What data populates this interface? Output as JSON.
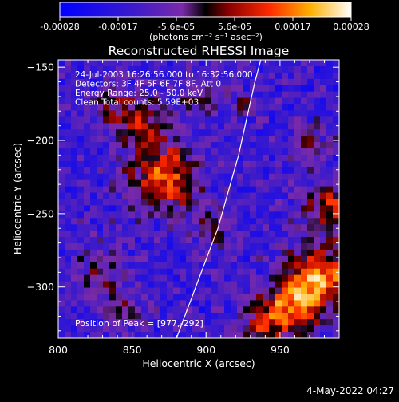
{
  "colorbar": {
    "tick_labels": [
      "-0.00028",
      "-0.00017",
      "-5.6e-05",
      "5.6e-05",
      "0.00017",
      "0.00028"
    ],
    "unit_label": "(photons cm⁻² s⁻¹ asec⁻²)"
  },
  "chart_data": {
    "type": "heatmap",
    "title": "Reconstructed RHESSI Image",
    "xlabel": "Heliocentric X (arcsec)",
    "ylabel": "Heliocentric Y (arcsec)",
    "xlim": [
      800,
      990
    ],
    "ylim": [
      -335,
      -145
    ],
    "x_ticks": [
      800,
      850,
      900,
      950
    ],
    "y_ticks": [
      -300,
      -250,
      -200,
      -150
    ],
    "x_tick_labels": [
      "800",
      "850",
      "900",
      "950"
    ],
    "y_tick_labels": [
      "−300",
      "−250",
      "−200",
      "−150"
    ],
    "value_range": [
      -0.00028,
      0.00028
    ],
    "annotations": [
      "24-Jul-2003 16:26:56.000 to 16:32:56.000",
      "Detectors: 3F 4F 5F 6F 7F 8F, Att 0",
      "Energy Range: 25.0 - 50.0 keV",
      "Clean     Total counts: 5.59E+03"
    ],
    "peak_label": "Position of Peak = [977,-292]",
    "peak": [
      977,
      -292
    ],
    "limb_line": [
      [
        880,
        -335
      ],
      [
        893,
        -300
      ],
      [
        908,
        -260
      ],
      [
        922,
        -210
      ],
      [
        933,
        -160
      ],
      [
        937,
        -145
      ]
    ],
    "sources": [
      {
        "x": 872,
        "y": -225,
        "sigma": 16,
        "amp": 0.00028
      },
      {
        "x": 855,
        "y": -188,
        "sigma": 12,
        "amp": 0.00018
      },
      {
        "x": 835,
        "y": -175,
        "sigma": 9,
        "amp": 0.00012
      },
      {
        "x": 895,
        "y": -172,
        "sigma": 9,
        "amp": 0.00013
      },
      {
        "x": 905,
        "y": -260,
        "sigma": 10,
        "amp": 0.00011
      },
      {
        "x": 830,
        "y": -290,
        "sigma": 12,
        "amp": 0.00012
      },
      {
        "x": 845,
        "y": -318,
        "sigma": 10,
        "amp": 0.0001
      },
      {
        "x": 977,
        "y": -292,
        "sigma": 14,
        "amp": 0.0003
      },
      {
        "x": 960,
        "y": -312,
        "sigma": 14,
        "amp": 0.00024
      },
      {
        "x": 940,
        "y": -325,
        "sigma": 12,
        "amp": 0.00018
      },
      {
        "x": 985,
        "y": -245,
        "sigma": 13,
        "amp": 0.00022
      },
      {
        "x": 970,
        "y": -200,
        "sigma": 9,
        "amp": 0.00012
      },
      {
        "x": 925,
        "y": -175,
        "sigma": 7,
        "amp": 0.0001
      }
    ]
  },
  "timestamp": "4-May-2022 04:27"
}
